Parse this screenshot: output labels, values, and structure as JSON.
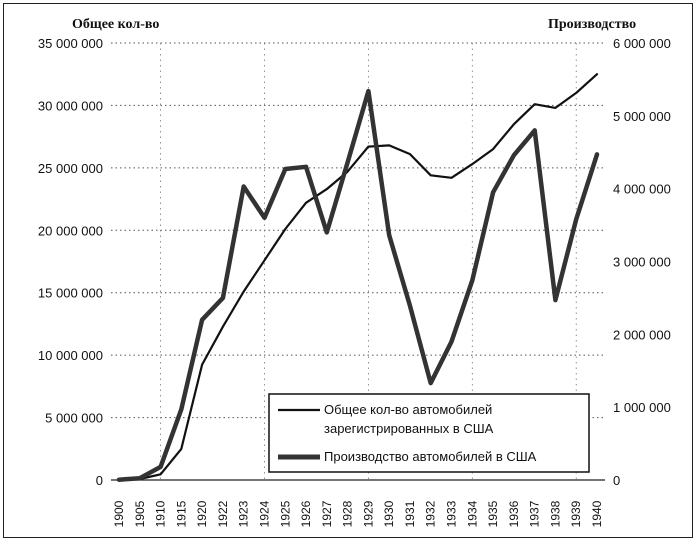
{
  "chart_data": {
    "type": "line",
    "title": "",
    "left_axis_title": "Общее кол-во",
    "right_axis_title": "Производство",
    "categories": [
      "1900",
      "1905",
      "1910",
      "1915",
      "1920",
      "1922",
      "1923",
      "1924",
      "1925",
      "1926",
      "1927",
      "1928",
      "1929",
      "1930",
      "1931",
      "1932",
      "1933",
      "1934",
      "1935",
      "1936",
      "1937",
      "1938",
      "1939",
      "1940"
    ],
    "left_axis": {
      "min": 0,
      "max": 35000000,
      "step": 5000000,
      "tick_labels": [
        "0",
        "5 000 000",
        "10 000 000",
        "15 000 000",
        "20 000 000",
        "25 000 000",
        "30 000 000",
        "35 000 000"
      ]
    },
    "right_axis": {
      "min": 0,
      "max": 6000000,
      "step": 1000000,
      "tick_labels": [
        "0",
        "1 000 000",
        "2 000 000",
        "3 000 000",
        "4 000 000",
        "5 000 000",
        "6 000 000"
      ]
    },
    "series": [
      {
        "name": "Общее кол-во автомобилей зарегистрированных в США",
        "axis": "left",
        "stroke_color": "#111111",
        "line_style": "thin",
        "values": [
          8000,
          78000,
          458000,
          2490000,
          9240000,
          12280000,
          15100000,
          17600000,
          20100000,
          22200000,
          23300000,
          24700000,
          26700000,
          26800000,
          26100000,
          24400000,
          24200000,
          25300000,
          26500000,
          28500000,
          30100000,
          29800000,
          31000000,
          32500000
        ]
      },
      {
        "name": "Производство автомобилей в США",
        "axis": "right",
        "stroke_color": "#333333",
        "line_style": "thick",
        "values": [
          4000,
          25000,
          180000,
          970000,
          2200000,
          2500000,
          4030000,
          3600000,
          4270000,
          4300000,
          3400000,
          4360000,
          5340000,
          3360000,
          2390000,
          1330000,
          1900000,
          2740000,
          3950000,
          4460000,
          4800000,
          2470000,
          3580000,
          4470000
        ]
      }
    ],
    "legend": {
      "position": "bottom-right",
      "entries": [
        {
          "line1": "Общее кол-во автомобилей",
          "line2": "зарегистрированных в США",
          "series": 0
        },
        {
          "line1": "Производство автомобилей в США",
          "line2": "",
          "series": 1
        }
      ]
    },
    "grid": true
  }
}
